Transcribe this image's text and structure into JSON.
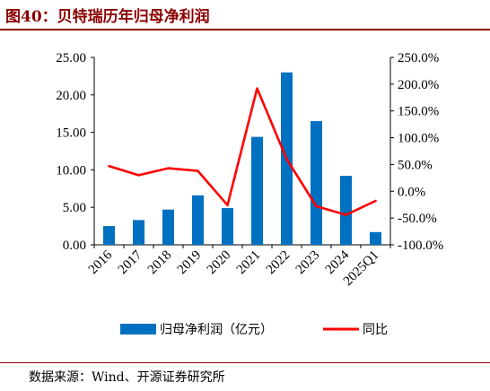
{
  "figure": {
    "title": "图40：贝特瑞历年归母净利润",
    "source": "数据来源：Wind、开源证券研究所",
    "colors": {
      "title": "#8b0000",
      "bar": "#0070c0",
      "line": "#ff0000"
    }
  },
  "chart_data": {
    "type": "bar",
    "title": "",
    "xlabel": "",
    "categories": [
      "2016",
      "2017",
      "2018",
      "2019",
      "2020",
      "2021",
      "2022",
      "2023",
      "2024",
      "2025Q1"
    ],
    "series": [
      {
        "name": "归母净利润（亿元）",
        "type": "bar",
        "axis": "left",
        "color": "#0070c0",
        "values": [
          2.5,
          3.3,
          4.7,
          6.6,
          4.9,
          14.4,
          23.0,
          16.5,
          9.2,
          1.7
        ]
      },
      {
        "name": "同比",
        "type": "line",
        "axis": "right",
        "color": "#ff0000",
        "values": [
          47.0,
          30.0,
          43.0,
          38.0,
          -26.0,
          192.0,
          60.0,
          -28.0,
          -44.0,
          -18.0
        ]
      }
    ],
    "y_left": {
      "ylim": [
        0,
        25
      ],
      "ticks": [
        "0.00",
        "5.00",
        "10.00",
        "15.00",
        "20.00",
        "25.00"
      ]
    },
    "y_right": {
      "ylim": [
        -100,
        250
      ],
      "ticks": [
        "-100.0%",
        "-50.0%",
        "0.0%",
        "50.0%",
        "100.0%",
        "150.0%",
        "200.0%",
        "250.0%"
      ]
    },
    "grid": false,
    "legend_position": "bottom"
  }
}
